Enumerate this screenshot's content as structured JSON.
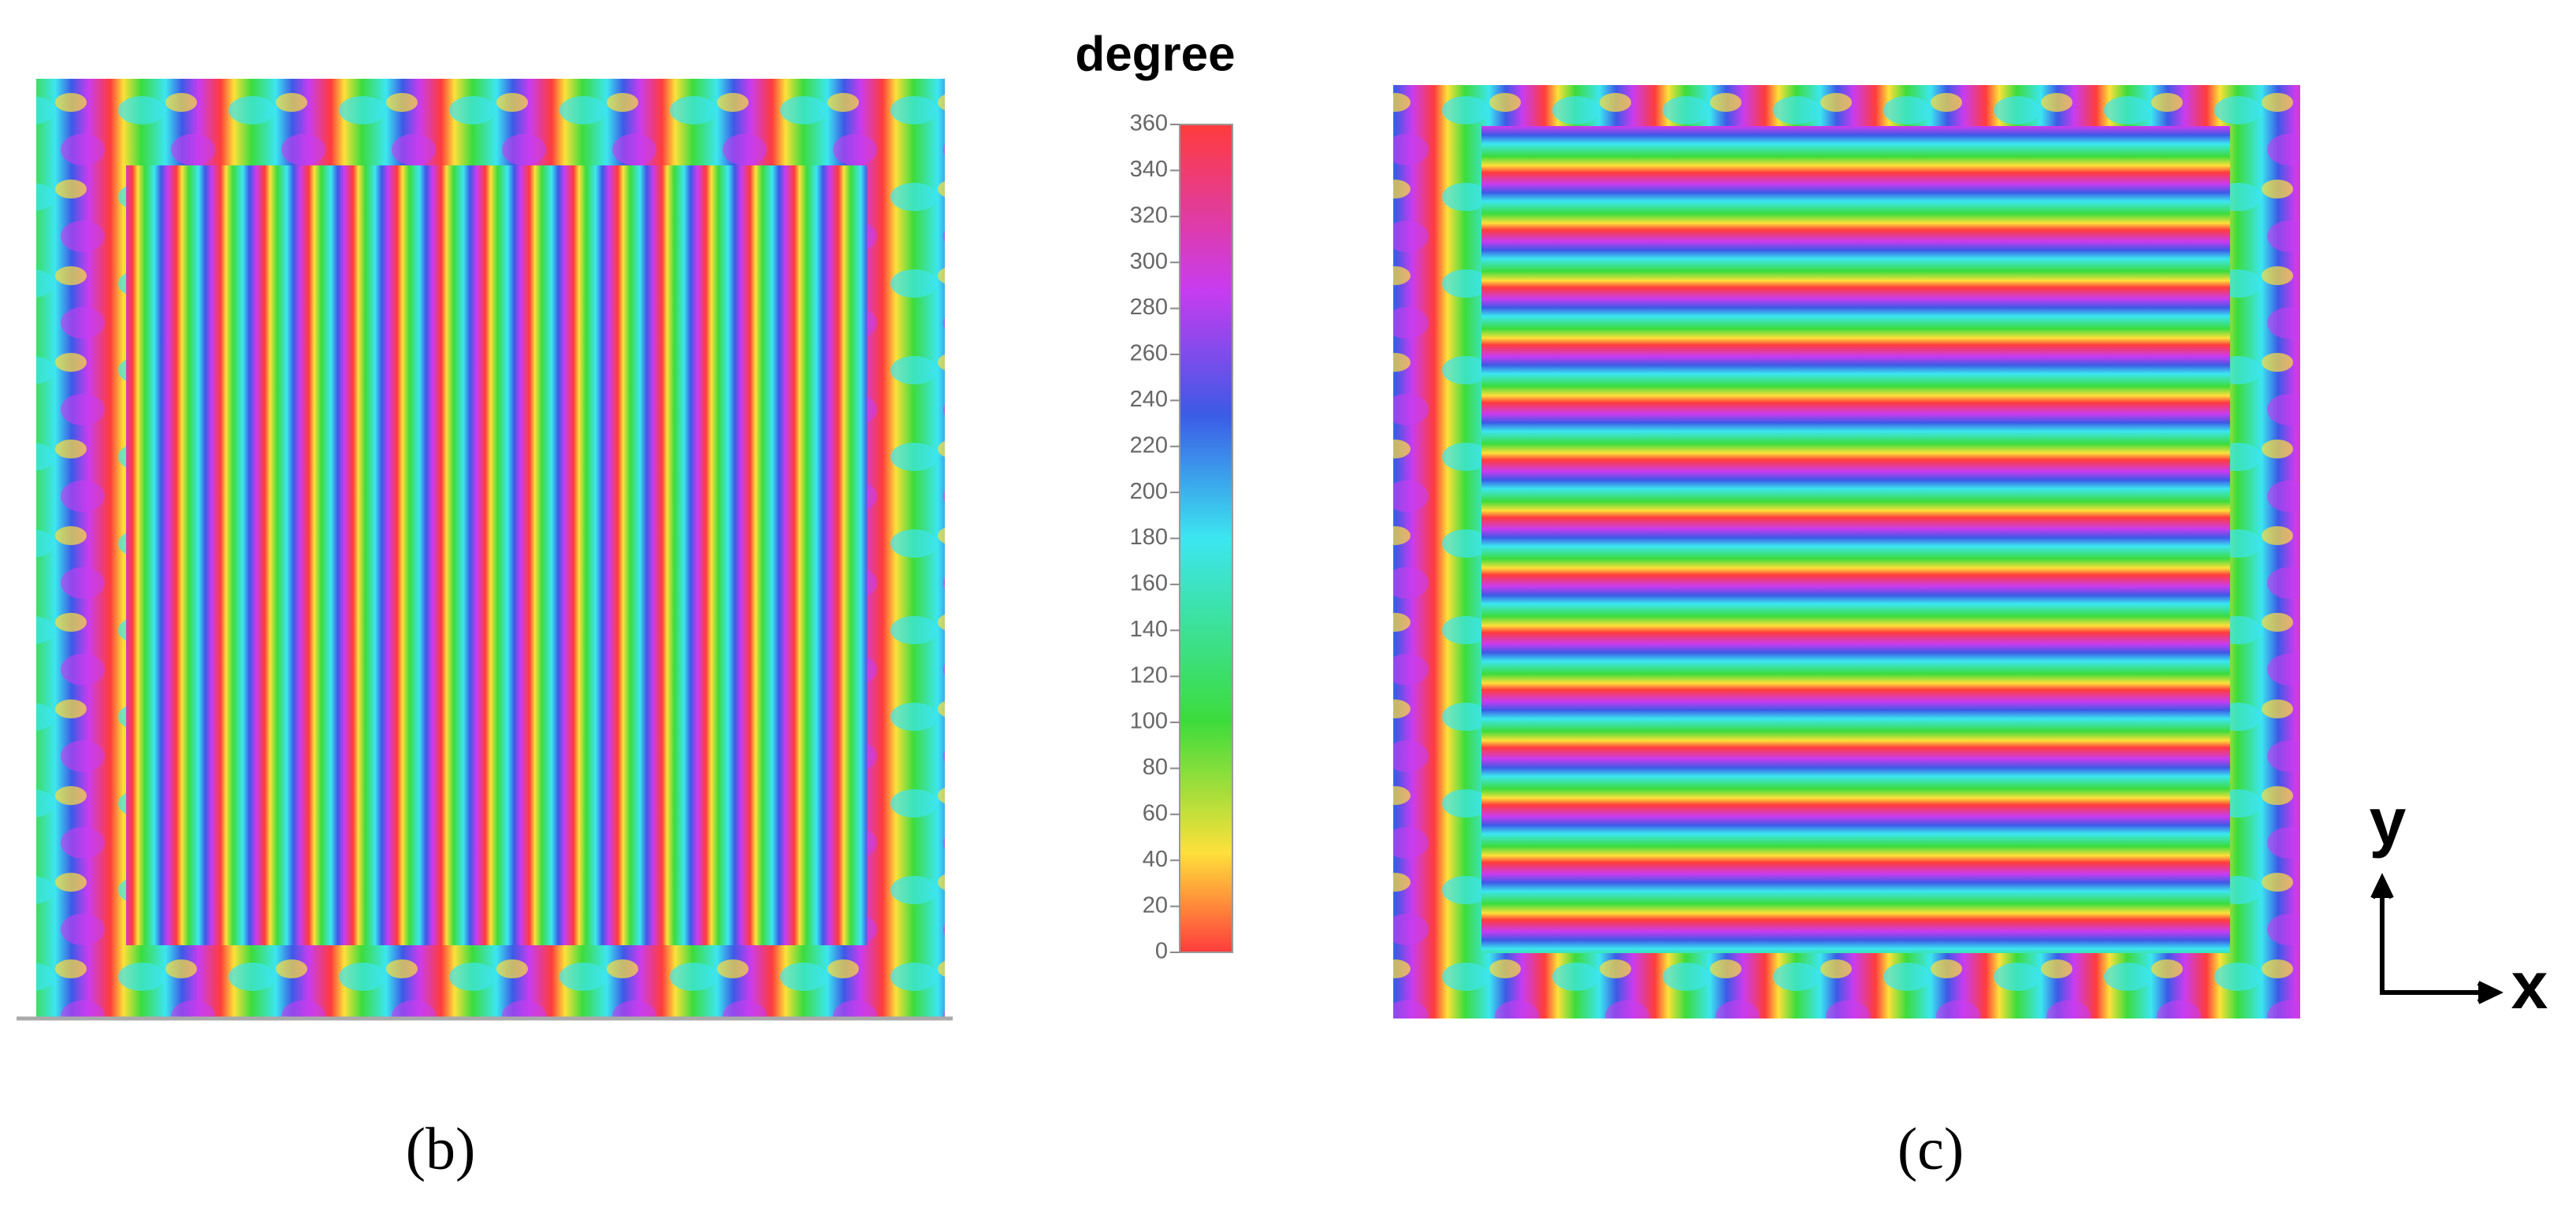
{
  "colorbar": {
    "label": "degree",
    "ticks": [
      0,
      20,
      40,
      60,
      80,
      100,
      120,
      140,
      160,
      180,
      200,
      220,
      240,
      260,
      280,
      300,
      320,
      340,
      360
    ]
  },
  "panels": [
    {
      "label": "(b)"
    },
    {
      "label": "(c)"
    }
  ],
  "axes_icon": {
    "y": "y",
    "x": "x"
  }
}
